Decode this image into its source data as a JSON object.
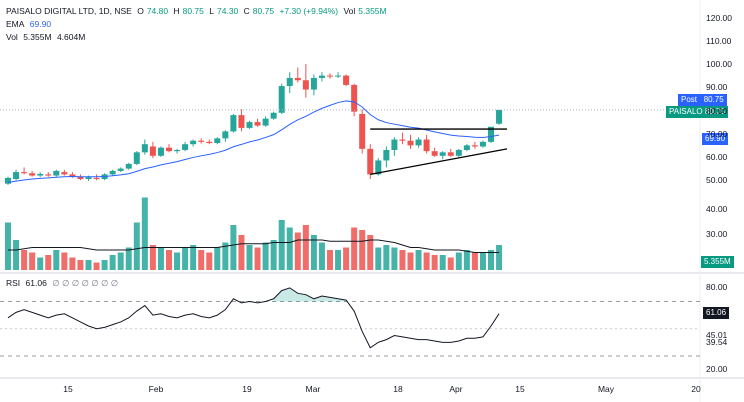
{
  "legend": {
    "symbol": "PAISALO DIGITAL LTD, 1D, NSE",
    "o_label": "O",
    "o": "74.80",
    "h_label": "H",
    "h": "80.75",
    "l_label": "L",
    "l": "74.30",
    "c_label": "C",
    "c": "80.75",
    "chg": "+7.30 (+9.94%)",
    "vol_label": "Vol",
    "vol": "5.355M",
    "ema_label": "EMA",
    "ema": "69.90",
    "vol2_label": "Vol",
    "vol2a": "5.355M",
    "vol2b": "4.604M",
    "rsi_label": "RSI",
    "rsi": "61.06",
    "rsi_markers": "∅ ∅ ∅ ∅ ∅ ∅ ∅"
  },
  "tags": {
    "post_label": "Post",
    "post_value": "80.75",
    "ticker_label": "PAISALO",
    "ticker_value": "80.75",
    "ema_value": "69.90",
    "vol_value": "5.355M",
    "rsi_value": "61.06"
  },
  "colors": {
    "up": "#26a69a",
    "down": "#ef5350",
    "ema": "#2962ff",
    "rsi": "#131722",
    "ticker": "#089981",
    "post": "#2962ff"
  },
  "chart_data": {
    "type": "candlestick",
    "price_axis": {
      "ticks": [
        50,
        60,
        70,
        80,
        90,
        100,
        110,
        120
      ],
      "range": [
        45,
        122
      ]
    },
    "volume_axis": {
      "ticks": [
        30,
        40
      ]
    },
    "rsi_axis": {
      "ticks": [
        20,
        39.54,
        45.01,
        61.06,
        80
      ],
      "range": [
        16,
        88
      ]
    },
    "x_ticks": [
      "15",
      "Feb",
      "19",
      "Mar",
      "18",
      "Apr",
      "15",
      "May",
      "20"
    ],
    "candles": [
      [
        49,
        52,
        48.5,
        51.5
      ],
      [
        51,
        55,
        50.5,
        54
      ],
      [
        54,
        56,
        53,
        53.5
      ],
      [
        53.5,
        54.5,
        52,
        52.5
      ],
      [
        52.5,
        54,
        51.8,
        53.2
      ],
      [
        53,
        54,
        52,
        52.5
      ],
      [
        52.5,
        55,
        52,
        54.5
      ],
      [
        54,
        55,
        52.5,
        53
      ],
      [
        53,
        54,
        51.5,
        52
      ],
      [
        52,
        53,
        50.5,
        51
      ],
      [
        51,
        52.5,
        50.2,
        51.8
      ],
      [
        51.5,
        53,
        50.5,
        51
      ],
      [
        51,
        53.5,
        50.5,
        53
      ],
      [
        53,
        55,
        52.5,
        54.5
      ],
      [
        54.5,
        56,
        54,
        55.5
      ],
      [
        55.5,
        58,
        55,
        57.5
      ],
      [
        57.5,
        63,
        57,
        62.5
      ],
      [
        62.5,
        68,
        61.5,
        66
      ],
      [
        65,
        67,
        60,
        61
      ],
      [
        61,
        65,
        60.5,
        64.5
      ],
      [
        64.5,
        66,
        62.5,
        63
      ],
      [
        63,
        64,
        62,
        63.5
      ],
      [
        63.5,
        67,
        63,
        66
      ],
      [
        66,
        68,
        65,
        67.5
      ],
      [
        67.5,
        68.5,
        66.3,
        67
      ],
      [
        67,
        68,
        66,
        66.5
      ],
      [
        66.5,
        69,
        66,
        68.5
      ],
      [
        68.5,
        72,
        67,
        71.5
      ],
      [
        71.5,
        79,
        71,
        78.5
      ],
      [
        78.5,
        81,
        71.5,
        73
      ],
      [
        73,
        76,
        72.5,
        75.5
      ],
      [
        75.5,
        77,
        73.5,
        74
      ],
      [
        74,
        78,
        73.5,
        77
      ],
      [
        77,
        80,
        76.5,
        79.5
      ],
      [
        79.5,
        92,
        79,
        91
      ],
      [
        91,
        97,
        88,
        94.5
      ],
      [
        94.5,
        99,
        92.5,
        93.5
      ],
      [
        93.5,
        100.5,
        86,
        89.5
      ],
      [
        89.5,
        96,
        87,
        94.5
      ],
      [
        94.5,
        97,
        93,
        95.5
      ],
      [
        95.5,
        96.5,
        94.2,
        95.2
      ],
      [
        95.5,
        97,
        94.5,
        95.5
      ],
      [
        95.5,
        96,
        91,
        91.5
      ],
      [
        91.5,
        92,
        78,
        80
      ],
      [
        79,
        81,
        62,
        64
      ],
      [
        64,
        66,
        51,
        53
      ],
      [
        53,
        60,
        52.5,
        59
      ],
      [
        59,
        65,
        56,
        63.5
      ],
      [
        63.5,
        69,
        61,
        68
      ],
      [
        68,
        71,
        66,
        67.5
      ],
      [
        67.5,
        70,
        64,
        65.5
      ],
      [
        65.5,
        69,
        64.5,
        68
      ],
      [
        68,
        70,
        62,
        63
      ],
      [
        63,
        64.5,
        60.5,
        61
      ],
      [
        61,
        63,
        59.5,
        62.5
      ],
      [
        62.5,
        64,
        60.5,
        61
      ],
      [
        61,
        64,
        60.5,
        63.5
      ],
      [
        63.5,
        66,
        63,
        65.5
      ],
      [
        65.5,
        67,
        64,
        65
      ],
      [
        65,
        67.5,
        64.5,
        67
      ],
      [
        67,
        73,
        66.5,
        73.5
      ],
      [
        74.8,
        80.75,
        74.3,
        80.75
      ]
    ],
    "ema": [
      49.5,
      50.1,
      50.6,
      51,
      51.3,
      51.5,
      51.8,
      52,
      52.1,
      52,
      52,
      52,
      52.1,
      52.4,
      52.8,
      53.3,
      54.3,
      55.5,
      56.2,
      57.1,
      57.8,
      58.5,
      59.4,
      60.3,
      61,
      61.6,
      62.4,
      63.4,
      64.9,
      65.9,
      67,
      67.8,
      68.9,
      70.1,
      72.2,
      74.5,
      76.5,
      78,
      79.8,
      81.4,
      82.7,
      83.9,
      84.6,
      84.2,
      82,
      78.7,
      76.5,
      75.3,
      74.6,
      74,
      73.3,
      72.9,
      72.1,
      71.3,
      70.6,
      69.9,
      69.5,
      69.3,
      69,
      68.9,
      69.3,
      69.9
    ],
    "volume": [
      35,
      28,
      24,
      23,
      21,
      22,
      24,
      23,
      21,
      20,
      20,
      19,
      20,
      22,
      23,
      25,
      35,
      45,
      26,
      25,
      24,
      23,
      25,
      26,
      24,
      23,
      25,
      27,
      34,
      30,
      26,
      25,
      27,
      28,
      36,
      33,
      31,
      34,
      30,
      27,
      24,
      24,
      25,
      33,
      32,
      30,
      25,
      26,
      25,
      24,
      23,
      24,
      23,
      22,
      22,
      21,
      23,
      24,
      23,
      23,
      24,
      26
    ],
    "volume_ma": [
      24,
      24,
      24.5,
      25,
      25,
      25,
      25,
      25,
      25,
      25,
      24.5,
      24,
      24,
      24,
      24,
      24,
      24.5,
      25,
      25,
      25,
      25,
      25,
      25,
      25,
      25,
      25,
      25,
      25.5,
      26,
      26.5,
      26.5,
      26.5,
      26.5,
      27,
      27,
      27,
      28,
      28,
      28,
      28,
      27.5,
      27.5,
      27.5,
      27.5,
      27.5,
      28,
      28,
      27.5,
      27,
      26,
      25,
      25,
      24.5,
      24,
      24,
      24,
      24,
      23.5,
      23,
      23,
      23,
      23
    ],
    "rsi": [
      58,
      62,
      64,
      62,
      60,
      58,
      60,
      61,
      58,
      55,
      52,
      50,
      51,
      53,
      55,
      58,
      63,
      67,
      60,
      61,
      59,
      58,
      60,
      61,
      59,
      58,
      60,
      64,
      72,
      69,
      70,
      69,
      70,
      72,
      78,
      80,
      76,
      75,
      72,
      74,
      73,
      72,
      71,
      63,
      48,
      36,
      40,
      42,
      45,
      44,
      43,
      42,
      42,
      41,
      40,
      40,
      41,
      43,
      43,
      44,
      52,
      61.06
    ],
    "resistance": {
      "from": 45,
      "to": 61,
      "value": 72.5
    },
    "support": {
      "from": 45,
      "to": 61,
      "start": 53,
      "end": 64
    }
  }
}
